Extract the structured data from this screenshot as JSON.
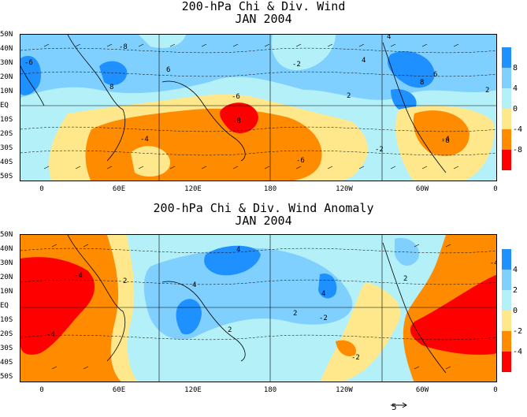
{
  "top": {
    "title_line1": "200-hPa Chi & Div. Wind",
    "title_line2": "JAN 2004",
    "lat_labels": [
      "50N",
      "40N",
      "30N",
      "20N",
      "10N",
      "EQ",
      "10S",
      "20S",
      "30S",
      "40S",
      "50S"
    ],
    "lon_labels": [
      "0",
      "60E",
      "120E",
      "180",
      "120W",
      "60W",
      "0"
    ],
    "colorbar": {
      "labels": [
        "8",
        "4",
        "0",
        "-4",
        "-8"
      ],
      "colors": [
        "#1e90ff",
        "#7fd0ff",
        "#b4f0f8",
        "#ffe88c",
        "#ff8c00",
        "#ff0000"
      ]
    },
    "contour_labels": [
      "-8",
      "-6",
      "-4",
      "-2",
      "2",
      "4",
      "6",
      "8",
      "-6",
      "-4",
      "-8",
      "-2",
      "4",
      "-6",
      "-8",
      "8",
      "6",
      "2"
    ]
  },
  "bottom": {
    "title_line1": "200-hPa Chi & Div. Wind Anomaly",
    "title_line2": "JAN 2004",
    "lat_labels": [
      "50N",
      "40N",
      "30N",
      "20N",
      "10N",
      "EQ",
      "10S",
      "20S",
      "30S",
      "40S",
      "50S"
    ],
    "lon_labels": [
      "0",
      "60E",
      "120E",
      "180",
      "120W",
      "60W",
      "0"
    ],
    "colorbar": {
      "labels": [
        "4",
        "2",
        "0",
        "-2",
        "-4"
      ],
      "colors": [
        "#1e90ff",
        "#7fd0ff",
        "#b4f0f8",
        "#ffe88c",
        "#ff8c00",
        "#ff0000"
      ]
    },
    "contour_labels": [
      "-4",
      "-4",
      "2",
      "4",
      "4",
      "2",
      "4",
      "2",
      "2",
      "-2",
      "-2",
      "-4"
    ]
  },
  "vector_scale": {
    "label": "5"
  }
}
